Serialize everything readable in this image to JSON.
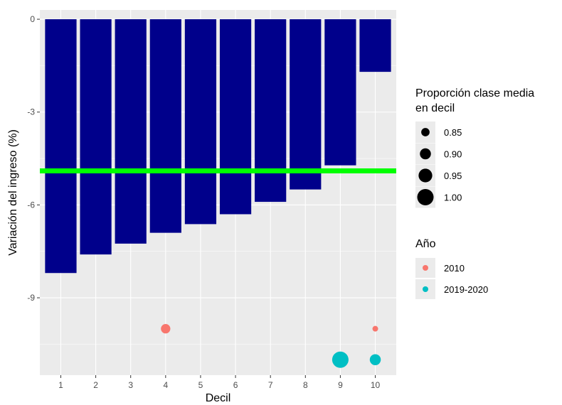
{
  "chart_data": {
    "type": "bar",
    "title": "",
    "xlabel": "Decil",
    "ylabel": "Variación del ingreso (%)",
    "categories": [
      "1",
      "2",
      "3",
      "4",
      "5",
      "6",
      "7",
      "8",
      "9",
      "10"
    ],
    "values": [
      -8.2,
      -7.6,
      -7.25,
      -6.9,
      -6.62,
      -6.3,
      -5.9,
      -5.5,
      -4.72,
      -1.7
    ],
    "bar_color": "#00008B",
    "ylim": [
      -11.5,
      0.3
    ],
    "yticks": [
      0,
      -3,
      -6,
      -9
    ],
    "ytick_labels": [
      "0",
      "-3",
      "-6",
      "-9"
    ],
    "reference_line": {
      "y": -4.9,
      "color": "#00FF00"
    },
    "points": [
      {
        "x": 4,
        "y": -10.0,
        "anio": "2010",
        "size": 0.87
      },
      {
        "x": 10,
        "y": -10.0,
        "anio": "2010",
        "size": 0.8
      },
      {
        "x": 9,
        "y": -11.0,
        "anio": "2019-2020",
        "size": 1.0
      },
      {
        "x": 10,
        "y": -11.0,
        "anio": "2019-2020",
        "size": 0.9
      }
    ],
    "grid": true,
    "panel_background": "#EBEBEB",
    "legend_position": "right",
    "legends": [
      {
        "title_lines": [
          "Proporción clase media",
          " en decil"
        ],
        "entries": [
          {
            "label": "0.85",
            "size": 0.85
          },
          {
            "label": "0.90",
            "size": 0.9
          },
          {
            "label": "0.95",
            "size": 0.95
          },
          {
            "label": "1.00",
            "size": 1.0
          }
        ]
      },
      {
        "title_lines": [
          "Año"
        ],
        "entries": [
          {
            "label": "2010",
            "color": "#F8766D"
          },
          {
            "label": "2019-2020",
            "color": "#00BFC4"
          }
        ]
      }
    ]
  }
}
